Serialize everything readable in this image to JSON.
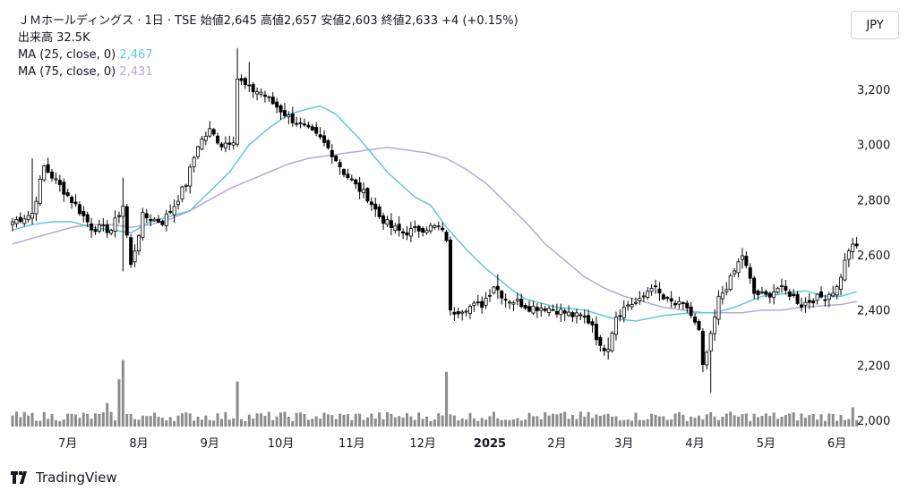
{
  "legend": {
    "title": "ＪＭホールディングス · 1日 · TSE",
    "ohlc": "始値2,645 高値2,657 安値2,603 終値2,633 +4 (+0.15%)",
    "volume": "出来高 32.5K",
    "ma25_label": "MA (25, close, 0)",
    "ma25_value": "2,467",
    "ma75_label": "MA (75, close, 0)",
    "ma75_value": "2,431"
  },
  "currency_button": "JPY",
  "brand": "TradingView",
  "colors": {
    "up": "#ffffff",
    "down": "#000000",
    "ma25": "#5fcad9",
    "ma75": "#b8a6d9",
    "volume": "#8c8c8c"
  },
  "chart_data": {
    "type": "candlestick",
    "ylim": [
      1990,
      3330
    ],
    "y_ticks": [
      "2,000",
      "2,200",
      "2,400",
      "2,600",
      "2,800",
      "3,000",
      "3,200"
    ],
    "x_ticks": [
      {
        "label": "7月",
        "bold": false
      },
      {
        "label": "8月",
        "bold": false
      },
      {
        "label": "9月",
        "bold": false
      },
      {
        "label": "10月",
        "bold": false
      },
      {
        "label": "11月",
        "bold": false
      },
      {
        "label": "12月",
        "bold": false
      },
      {
        "label": "2025",
        "bold": true
      },
      {
        "label": "2月",
        "bold": false
      },
      {
        "label": "3月",
        "bold": false
      },
      {
        "label": "4月",
        "bold": false
      },
      {
        "label": "5月",
        "bold": false
      },
      {
        "label": "6月",
        "bold": false
      }
    ],
    "x_tick_index": [
      14,
      32,
      50,
      68,
      86,
      104,
      121,
      138,
      155,
      173,
      191,
      209
    ],
    "close_anchors": [
      [
        0,
        2720
      ],
      [
        5,
        2750
      ],
      [
        8,
        2920
      ],
      [
        12,
        2850
      ],
      [
        16,
        2780
      ],
      [
        20,
        2700
      ],
      [
        25,
        2690
      ],
      [
        28,
        2780
      ],
      [
        30,
        2560
      ],
      [
        33,
        2740
      ],
      [
        38,
        2720
      ],
      [
        41,
        2780
      ],
      [
        44,
        2860
      ],
      [
        47,
        3000
      ],
      [
        50,
        3050
      ],
      [
        53,
        3000
      ],
      [
        56,
        3020
      ],
      [
        57,
        3240
      ],
      [
        60,
        3200
      ],
      [
        63,
        3190
      ],
      [
        66,
        3150
      ],
      [
        70,
        3100
      ],
      [
        74,
        3060
      ],
      [
        78,
        3020
      ],
      [
        81,
        2970
      ],
      [
        84,
        2900
      ],
      [
        87,
        2850
      ],
      [
        90,
        2810
      ],
      [
        93,
        2740
      ],
      [
        96,
        2700
      ],
      [
        99,
        2680
      ],
      [
        102,
        2690
      ],
      [
        105,
        2700
      ],
      [
        108,
        2700
      ],
      [
        110,
        2660
      ],
      [
        111,
        2390
      ],
      [
        115,
        2410
      ],
      [
        119,
        2420
      ],
      [
        122,
        2490
      ],
      [
        125,
        2440
      ],
      [
        128,
        2430
      ],
      [
        131,
        2410
      ],
      [
        135,
        2410
      ],
      [
        138,
        2400
      ],
      [
        142,
        2380
      ],
      [
        145,
        2370
      ],
      [
        147,
        2350
      ],
      [
        149,
        2260
      ],
      [
        151,
        2270
      ],
      [
        153,
        2380
      ],
      [
        156,
        2420
      ],
      [
        159,
        2430
      ],
      [
        162,
        2490
      ],
      [
        165,
        2440
      ],
      [
        168,
        2420
      ],
      [
        171,
        2410
      ],
      [
        174,
        2320
      ],
      [
        175,
        2190
      ],
      [
        177,
        2300
      ],
      [
        179,
        2440
      ],
      [
        182,
        2510
      ],
      [
        185,
        2600
      ],
      [
        188,
        2460
      ],
      [
        191,
        2450
      ],
      [
        194,
        2480
      ],
      [
        197,
        2460
      ],
      [
        200,
        2420
      ],
      [
        203,
        2440
      ],
      [
        206,
        2450
      ],
      [
        209,
        2480
      ],
      [
        212,
        2620
      ],
      [
        214,
        2633
      ]
    ],
    "big_candles": [
      [
        5,
        2950,
        2830
      ],
      [
        28,
        2880,
        2540
      ],
      [
        57,
        3350,
        3190
      ],
      [
        60,
        3300,
        3200
      ],
      [
        111,
        2480,
        2380
      ],
      [
        123,
        2530,
        2440
      ],
      [
        151,
        2300,
        2220
      ],
      [
        177,
        2120,
        2100
      ],
      [
        185,
        2620,
        2550
      ]
    ],
    "ma25_anchors": [
      [
        0,
        2690
      ],
      [
        5,
        2710
      ],
      [
        10,
        2720
      ],
      [
        15,
        2720
      ],
      [
        20,
        2700
      ],
      [
        25,
        2690
      ],
      [
        30,
        2680
      ],
      [
        35,
        2720
      ],
      [
        40,
        2740
      ],
      [
        45,
        2760
      ],
      [
        50,
        2830
      ],
      [
        55,
        2900
      ],
      [
        60,
        3000
      ],
      [
        65,
        3060
      ],
      [
        70,
        3110
      ],
      [
        75,
        3130
      ],
      [
        78,
        3140
      ],
      [
        82,
        3110
      ],
      [
        88,
        3020
      ],
      [
        95,
        2900
      ],
      [
        102,
        2810
      ],
      [
        106,
        2780
      ],
      [
        110,
        2700
      ],
      [
        115,
        2620
      ],
      [
        120,
        2550
      ],
      [
        126,
        2480
      ],
      [
        130,
        2440
      ],
      [
        138,
        2410
      ],
      [
        145,
        2400
      ],
      [
        152,
        2370
      ],
      [
        158,
        2360
      ],
      [
        165,
        2380
      ],
      [
        172,
        2390
      ],
      [
        178,
        2390
      ],
      [
        183,
        2410
      ],
      [
        190,
        2450
      ],
      [
        196,
        2460
      ],
      [
        201,
        2470
      ],
      [
        206,
        2450
      ],
      [
        210,
        2450
      ],
      [
        214,
        2467
      ]
    ],
    "ma75_anchors": [
      [
        0,
        2640
      ],
      [
        5,
        2660
      ],
      [
        10,
        2680
      ],
      [
        15,
        2700
      ],
      [
        20,
        2710
      ],
      [
        25,
        2710
      ],
      [
        30,
        2700
      ],
      [
        35,
        2710
      ],
      [
        40,
        2730
      ],
      [
        45,
        2760
      ],
      [
        50,
        2800
      ],
      [
        55,
        2840
      ],
      [
        60,
        2870
      ],
      [
        65,
        2900
      ],
      [
        70,
        2930
      ],
      [
        75,
        2950
      ],
      [
        80,
        2960
      ],
      [
        85,
        2970
      ],
      [
        90,
        2980
      ],
      [
        95,
        2990
      ],
      [
        100,
        2980
      ],
      [
        105,
        2970
      ],
      [
        110,
        2950
      ],
      [
        115,
        2910
      ],
      [
        120,
        2860
      ],
      [
        125,
        2790
      ],
      [
        130,
        2720
      ],
      [
        135,
        2640
      ],
      [
        140,
        2580
      ],
      [
        145,
        2520
      ],
      [
        150,
        2480
      ],
      [
        155,
        2450
      ],
      [
        160,
        2430
      ],
      [
        165,
        2410
      ],
      [
        170,
        2400
      ],
      [
        175,
        2390
      ],
      [
        180,
        2390
      ],
      [
        185,
        2390
      ],
      [
        190,
        2400
      ],
      [
        195,
        2400
      ],
      [
        200,
        2410
      ],
      [
        205,
        2415
      ],
      [
        210,
        2420
      ],
      [
        214,
        2431
      ]
    ],
    "volume_spikes": [
      [
        28,
        0.62
      ],
      [
        27,
        0.44
      ],
      [
        24,
        0.22
      ],
      [
        57,
        0.42
      ],
      [
        110,
        0.51
      ],
      [
        190,
        0.1
      ],
      [
        213,
        0.18
      ]
    ]
  }
}
